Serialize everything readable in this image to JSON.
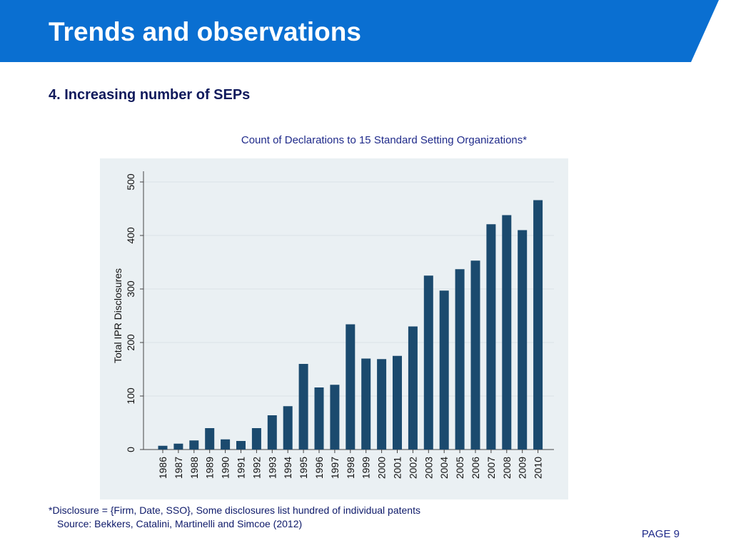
{
  "header": {
    "title": "Trends and observations",
    "bg_color": "#0a6fd1"
  },
  "subtitle": "4. Increasing number of SEPs",
  "chart_data": {
    "type": "bar",
    "title": "Count of Declarations to 15 Standard Setting Organizations*",
    "xlabel": "",
    "ylabel": "Total IPR Disclosures",
    "categories": [
      "1986",
      "1987",
      "1988",
      "1989",
      "1990",
      "1991",
      "1992",
      "1993",
      "1994",
      "1995",
      "1996",
      "1997",
      "1998",
      "1999",
      "2000",
      "2001",
      "2002",
      "2003",
      "2004",
      "2005",
      "2006",
      "2007",
      "2008",
      "2009",
      "2010"
    ],
    "values": [
      7,
      11,
      17,
      40,
      19,
      16,
      40,
      64,
      81,
      160,
      116,
      121,
      234,
      170,
      169,
      175,
      230,
      325,
      297,
      337,
      353,
      421,
      438,
      410,
      466
    ],
    "y_ticks": [
      0,
      100,
      200,
      300,
      400,
      500
    ],
    "ylim": [
      0,
      525
    ],
    "grid": true,
    "bar_color": "#1b4a6e",
    "plot_bg": "#eaf0f3"
  },
  "footnote": "*Disclosure = {Firm, Date, SSO}, Some disclosures list hundred of individual patents",
  "source": "Source: Bekkers, Catalini, Martinelli and Simcoe (2012)",
  "page": "PAGE 9"
}
